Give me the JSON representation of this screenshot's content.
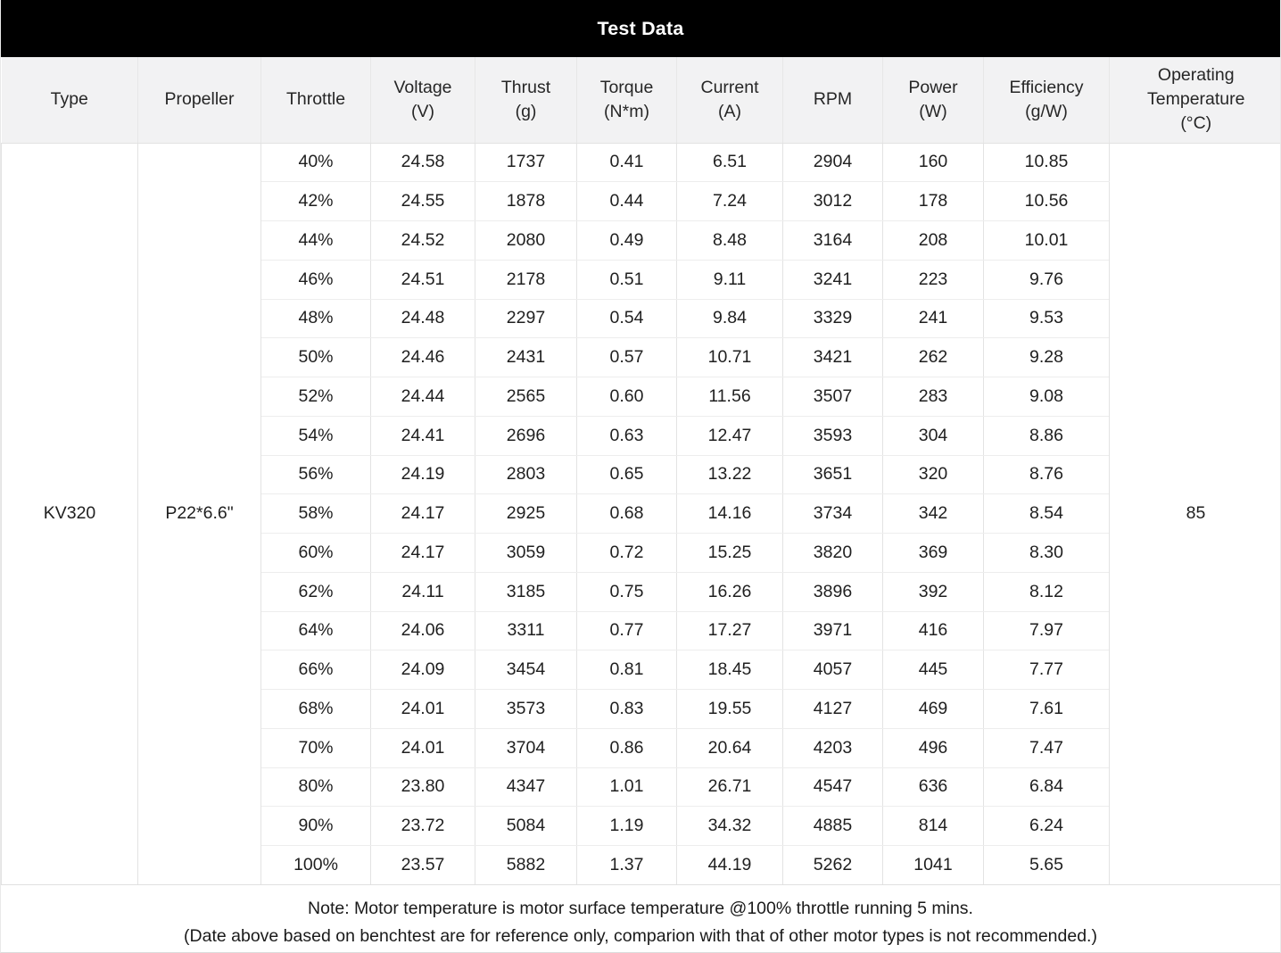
{
  "title_bar": {
    "title": "Test Data"
  },
  "table": {
    "columns": [
      {
        "label": "Type",
        "sub": ""
      },
      {
        "label": "Propeller",
        "sub": ""
      },
      {
        "label": "Throttle",
        "sub": ""
      },
      {
        "label": "Voltage",
        "sub": "(V)"
      },
      {
        "label": "Thrust",
        "sub": "(g)"
      },
      {
        "label": "Torque",
        "sub": "(N*m)"
      },
      {
        "label": "Current",
        "sub": "(A)"
      },
      {
        "label": "RPM",
        "sub": ""
      },
      {
        "label": "Power",
        "sub": "(W)"
      },
      {
        "label": "Efficiency",
        "sub": "(g/W)"
      },
      {
        "label": "Operating Temperature",
        "sub": "(°C)"
      }
    ],
    "type": "KV320",
    "propeller": "P22*6.6\"",
    "operating_temperature": "85",
    "row_fields": [
      "throttle",
      "voltage",
      "thrust",
      "torque",
      "current",
      "rpm",
      "power",
      "efficiency"
    ],
    "rows": [
      [
        "40%",
        "24.58",
        "1737",
        "0.41",
        "6.51",
        "2904",
        "160",
        "10.85"
      ],
      [
        "42%",
        "24.55",
        "1878",
        "0.44",
        "7.24",
        "3012",
        "178",
        "10.56"
      ],
      [
        "44%",
        "24.52",
        "2080",
        "0.49",
        "8.48",
        "3164",
        "208",
        "10.01"
      ],
      [
        "46%",
        "24.51",
        "2178",
        "0.51",
        "9.11",
        "3241",
        "223",
        "9.76"
      ],
      [
        "48%",
        "24.48",
        "2297",
        "0.54",
        "9.84",
        "3329",
        "241",
        "9.53"
      ],
      [
        "50%",
        "24.46",
        "2431",
        "0.57",
        "10.71",
        "3421",
        "262",
        "9.28"
      ],
      [
        "52%",
        "24.44",
        "2565",
        "0.60",
        "11.56",
        "3507",
        "283",
        "9.08"
      ],
      [
        "54%",
        "24.41",
        "2696",
        "0.63",
        "12.47",
        "3593",
        "304",
        "8.86"
      ],
      [
        "56%",
        "24.19",
        "2803",
        "0.65",
        "13.22",
        "3651",
        "320",
        "8.76"
      ],
      [
        "58%",
        "24.17",
        "2925",
        "0.68",
        "14.16",
        "3734",
        "342",
        "8.54"
      ],
      [
        "60%",
        "24.17",
        "3059",
        "0.72",
        "15.25",
        "3820",
        "369",
        "8.30"
      ],
      [
        "62%",
        "24.11",
        "3185",
        "0.75",
        "16.26",
        "3896",
        "392",
        "8.12"
      ],
      [
        "64%",
        "24.06",
        "3311",
        "0.77",
        "17.27",
        "3971",
        "416",
        "7.97"
      ],
      [
        "66%",
        "24.09",
        "3454",
        "0.81",
        "18.45",
        "4057",
        "445",
        "7.77"
      ],
      [
        "68%",
        "24.01",
        "3573",
        "0.83",
        "19.55",
        "4127",
        "469",
        "7.61"
      ],
      [
        "70%",
        "24.01",
        "3704",
        "0.86",
        "20.64",
        "4203",
        "496",
        "7.47"
      ],
      [
        "80%",
        "23.80",
        "4347",
        "1.01",
        "26.71",
        "4547",
        "636",
        "6.84"
      ],
      [
        "90%",
        "23.72",
        "5084",
        "1.19",
        "34.32",
        "4885",
        "814",
        "6.24"
      ],
      [
        "100%",
        "23.57",
        "5882",
        "1.37",
        "44.19",
        "5262",
        "1041",
        "5.65"
      ]
    ]
  },
  "note": {
    "line1": "Note: Motor temperature is motor surface temperature @100% throttle running 5 mins.",
    "line2": "(Date above based on benchtest are for reference only, comparion with that of other motor types is not recommended.)"
  }
}
